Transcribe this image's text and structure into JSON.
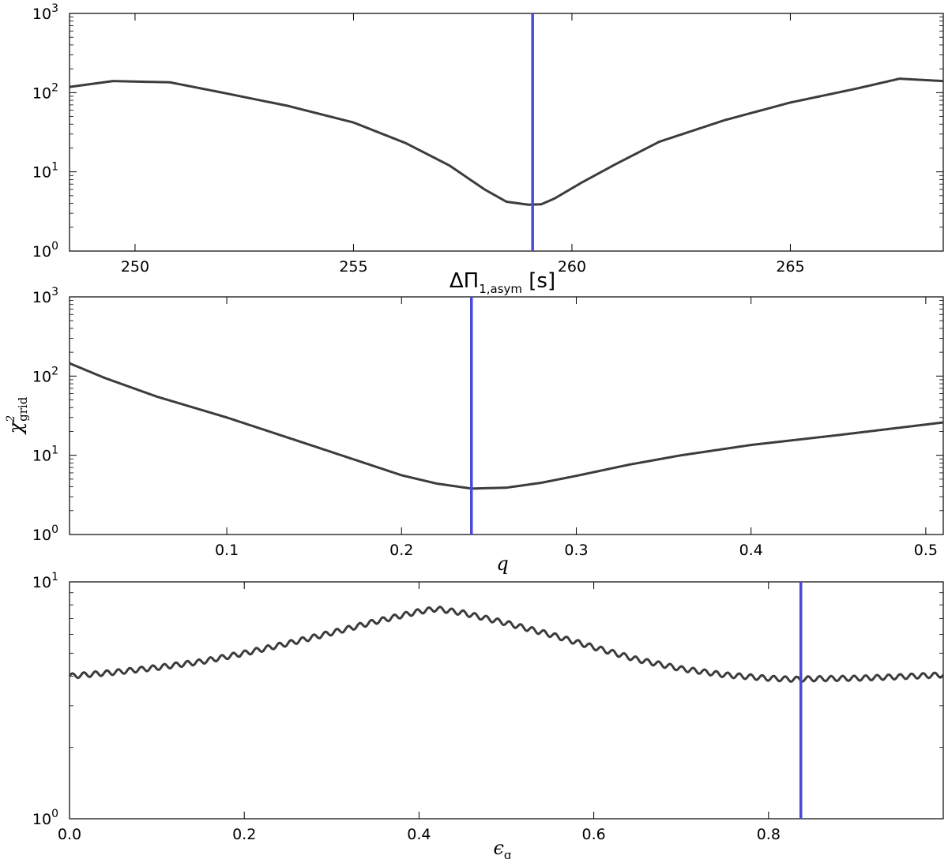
{
  "chart_data": [
    {
      "type": "line",
      "id": "panel-1",
      "xlabel": "ΔΠ",
      "xlabel_sub": "1,asym",
      "xlabel_unit": " [s]",
      "xlim": [
        248.5,
        268.5
      ],
      "ylim": [
        1,
        1000
      ],
      "yscale": "log",
      "xticks": [
        250,
        255,
        260,
        265
      ],
      "xtick_labels": [
        "250",
        "255",
        "260",
        "265"
      ],
      "ytick_labels": [
        "10",
        "10",
        "10",
        "10"
      ],
      "ytick_exponents": [
        "0",
        "1",
        "2",
        "3"
      ],
      "grid": false,
      "series": [
        {
          "color": "#3c3c3c",
          "x": [
            248.5,
            249.5,
            250.8,
            252,
            253.5,
            255,
            256.2,
            257.2,
            258,
            258.5,
            259.0,
            259.3,
            259.6,
            260.2,
            261,
            262,
            263.5,
            265,
            266.5,
            267.5,
            268.5
          ],
          "y": [
            118,
            140,
            135,
            100,
            68,
            42,
            23,
            12,
            6,
            4.2,
            3.85,
            3.9,
            4.6,
            7.2,
            12.5,
            24,
            45,
            75,
            112,
            150,
            140
          ]
        }
      ],
      "vline": {
        "x": 259.1,
        "color": "#4a4ad8"
      }
    },
    {
      "type": "line",
      "id": "panel-2",
      "xlabel": "q",
      "ylabel": "χ",
      "ylabel_sup": "2",
      "ylabel_sub": "grid",
      "xlim": [
        0.01,
        0.51
      ],
      "ylim": [
        1,
        1000
      ],
      "yscale": "log",
      "xticks": [
        0.1,
        0.2,
        0.3,
        0.4,
        0.5
      ],
      "xtick_labels": [
        "0.1",
        "0.2",
        "0.3",
        "0.4",
        "0.5"
      ],
      "ytick_labels": [
        "10",
        "10",
        "10",
        "10"
      ],
      "ytick_exponents": [
        "0",
        "1",
        "2",
        "3"
      ],
      "grid": false,
      "series": [
        {
          "color": "#3c3c3c",
          "x": [
            0.01,
            0.03,
            0.06,
            0.1,
            0.15,
            0.2,
            0.22,
            0.24,
            0.26,
            0.28,
            0.3,
            0.33,
            0.36,
            0.4,
            0.45,
            0.51
          ],
          "y": [
            145,
            95,
            55,
            30,
            13,
            5.6,
            4.4,
            3.8,
            3.9,
            4.5,
            5.5,
            7.6,
            10,
            13.5,
            18,
            26
          ]
        }
      ],
      "vline": {
        "x": 0.24,
        "color": "#4a4ad8"
      }
    },
    {
      "type": "line",
      "id": "panel-3",
      "xlabel": "ϵ",
      "xlabel_sub": "g",
      "xlim": [
        0.0,
        1.0
      ],
      "ylim": [
        1,
        10
      ],
      "yscale": "log",
      "xticks": [
        0.0,
        0.2,
        0.4,
        0.6,
        0.8
      ],
      "xtick_labels": [
        "0.0",
        "0.2",
        "0.4",
        "0.6",
        "0.8"
      ],
      "ytick_labels": [
        "10",
        "10"
      ],
      "ytick_exponents": [
        "0",
        "1"
      ],
      "grid": false,
      "series": [
        {
          "color": "#3c3c3c",
          "oscillation_amplitude_rel": 0.025,
          "oscillation_cycles": 76,
          "x": [
            0.0,
            0.05,
            0.1,
            0.15,
            0.2,
            0.25,
            0.3,
            0.35,
            0.4,
            0.42,
            0.45,
            0.5,
            0.55,
            0.6,
            0.65,
            0.7,
            0.75,
            0.8,
            0.83,
            0.85,
            0.9,
            0.95,
            1.0
          ],
          "y": [
            4.0,
            4.15,
            4.35,
            4.6,
            5.0,
            5.5,
            6.1,
            6.8,
            7.5,
            7.7,
            7.4,
            6.7,
            6.0,
            5.3,
            4.7,
            4.3,
            4.05,
            3.92,
            3.88,
            3.9,
            3.92,
            3.98,
            4.05
          ]
        }
      ],
      "vline": {
        "x": 0.837,
        "color": "#4a4ad8"
      }
    }
  ]
}
